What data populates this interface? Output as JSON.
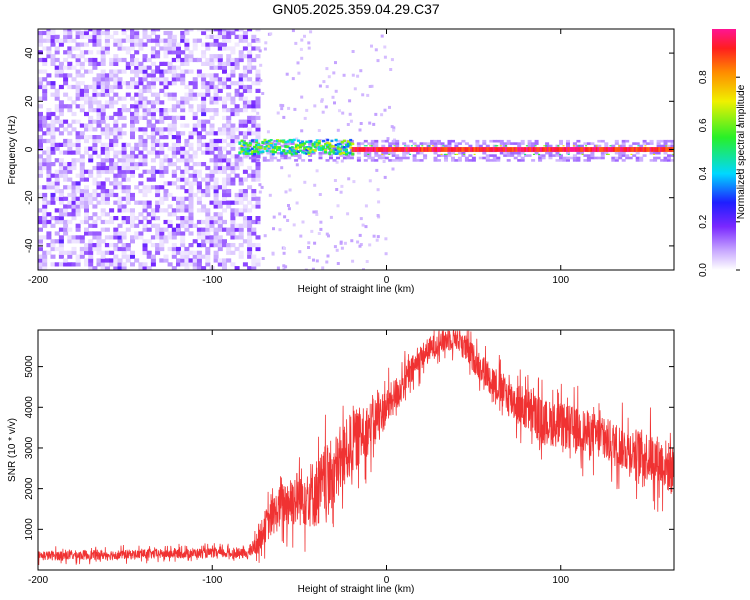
{
  "figure_title": "GN05.2025.359.04.29.C37",
  "chart_data": [
    {
      "type": "heatmap",
      "title": "GN05.2025.359.04.29.C37",
      "xlabel": "Height of straight line (km)",
      "ylabel": "Frequency (Hz)",
      "xlim": [
        -200,
        165
      ],
      "ylim": [
        -50,
        50
      ],
      "xticks": [
        -200,
        -100,
        0,
        100
      ],
      "yticks": [
        -40,
        -20,
        0,
        20,
        40
      ],
      "colorbar": {
        "label": "Normalized spectral amplitude",
        "range": [
          0,
          1
        ],
        "ticks": [
          0.0,
          0.2,
          0.4,
          0.6,
          0.8
        ],
        "tick_labels": [
          "0.0",
          "0.2",
          "0.4",
          "0.6",
          "0.8"
        ]
      },
      "regions": [
        {
          "name": "broadband noise",
          "x_range": [
            -200,
            -75
          ],
          "freq_range": [
            -50,
            50
          ],
          "amplitude": [
            0.02,
            0.15
          ]
        },
        {
          "name": "carrier onset",
          "x_range": [
            -85,
            -20
          ],
          "freq_center": 1.5,
          "freq_halfwidth": 3,
          "amplitude": [
            0.3,
            0.7
          ]
        },
        {
          "name": "carrier line",
          "x_range": [
            -20,
            165
          ],
          "freq_center": 0,
          "freq_halfwidth": 1,
          "amplitude": [
            0.85,
            1.0
          ]
        }
      ],
      "colors": [
        "#ffffff",
        "#e6d5ff",
        "#b48cf2",
        "#6a1ee6",
        "#1414e6",
        "#00e6e6",
        "#3cf03c",
        "#e6e600",
        "#ff8c00",
        "#ff1e1e",
        "#ff1493"
      ]
    },
    {
      "type": "line",
      "xlabel": "Height of straight line (km)",
      "ylabel": "SNR (10 * v/v)",
      "xlim": [
        -200,
        165
      ],
      "ylim": [
        0,
        5900
      ],
      "xticks": [
        -200,
        -100,
        0,
        100
      ],
      "yticks": [
        1000,
        2000,
        3000,
        4000,
        5000
      ],
      "line_color": "#f03232",
      "series": [
        {
          "name": "SNR",
          "x": [
            -200,
            -150,
            -100,
            -80,
            -75,
            -70,
            -60,
            -50,
            -40,
            -30,
            -20,
            -10,
            0,
            10,
            20,
            30,
            40,
            50,
            60,
            70,
            80,
            90,
            100,
            110,
            120,
            130,
            140,
            150,
            160,
            165
          ],
          "values": [
            350,
            380,
            420,
            400,
            600,
            1050,
            1600,
            1800,
            1900,
            2400,
            3100,
            3500,
            4000,
            4600,
            5250,
            5600,
            5750,
            5200,
            4700,
            4250,
            3950,
            3650,
            3550,
            3450,
            3300,
            3100,
            2950,
            2800,
            2600,
            2400
          ],
          "noise_amplitude": [
            150,
            150,
            150,
            150,
            300,
            500,
            700,
            900,
            1100,
            1100,
            1000,
            800,
            600,
            500,
            400,
            400,
            400,
            450,
            500,
            600,
            700,
            700,
            700,
            700,
            700,
            700,
            700,
            800,
            800,
            800
          ]
        }
      ]
    }
  ]
}
